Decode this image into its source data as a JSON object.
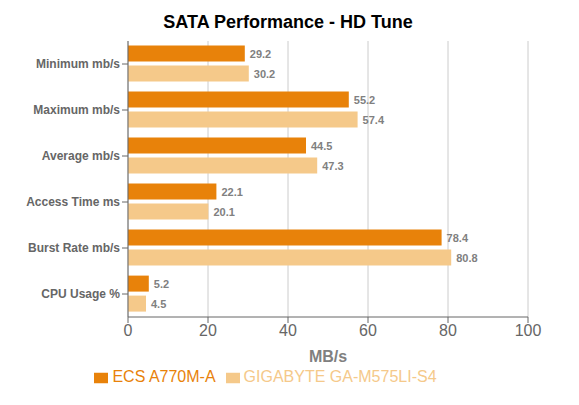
{
  "chart_data": {
    "type": "bar",
    "orientation": "horizontal",
    "title": "SATA Performance - HD Tune",
    "xlabel": "MB/s",
    "categories": [
      "Minimum mb/s",
      "Maximum mb/s",
      "Average mb/s",
      "Access Time ms",
      "Burst Rate mb/s",
      "CPU Usage %"
    ],
    "series": [
      {
        "name": "ECS A770M-A",
        "color": "#E8820A",
        "values": [
          29.2,
          55.2,
          44.5,
          22.1,
          78.4,
          5.2
        ]
      },
      {
        "name": "GIGABYTE GA-M575LI-S4",
        "color": "#F5C98A",
        "values": [
          30.2,
          57.4,
          47.3,
          20.1,
          80.8,
          4.5
        ]
      }
    ],
    "xlim": [
      0,
      100
    ],
    "xticks": [
      0,
      20,
      40,
      60,
      80,
      100
    ],
    "grid": true,
    "legend": "bottom",
    "data_labels": true
  }
}
